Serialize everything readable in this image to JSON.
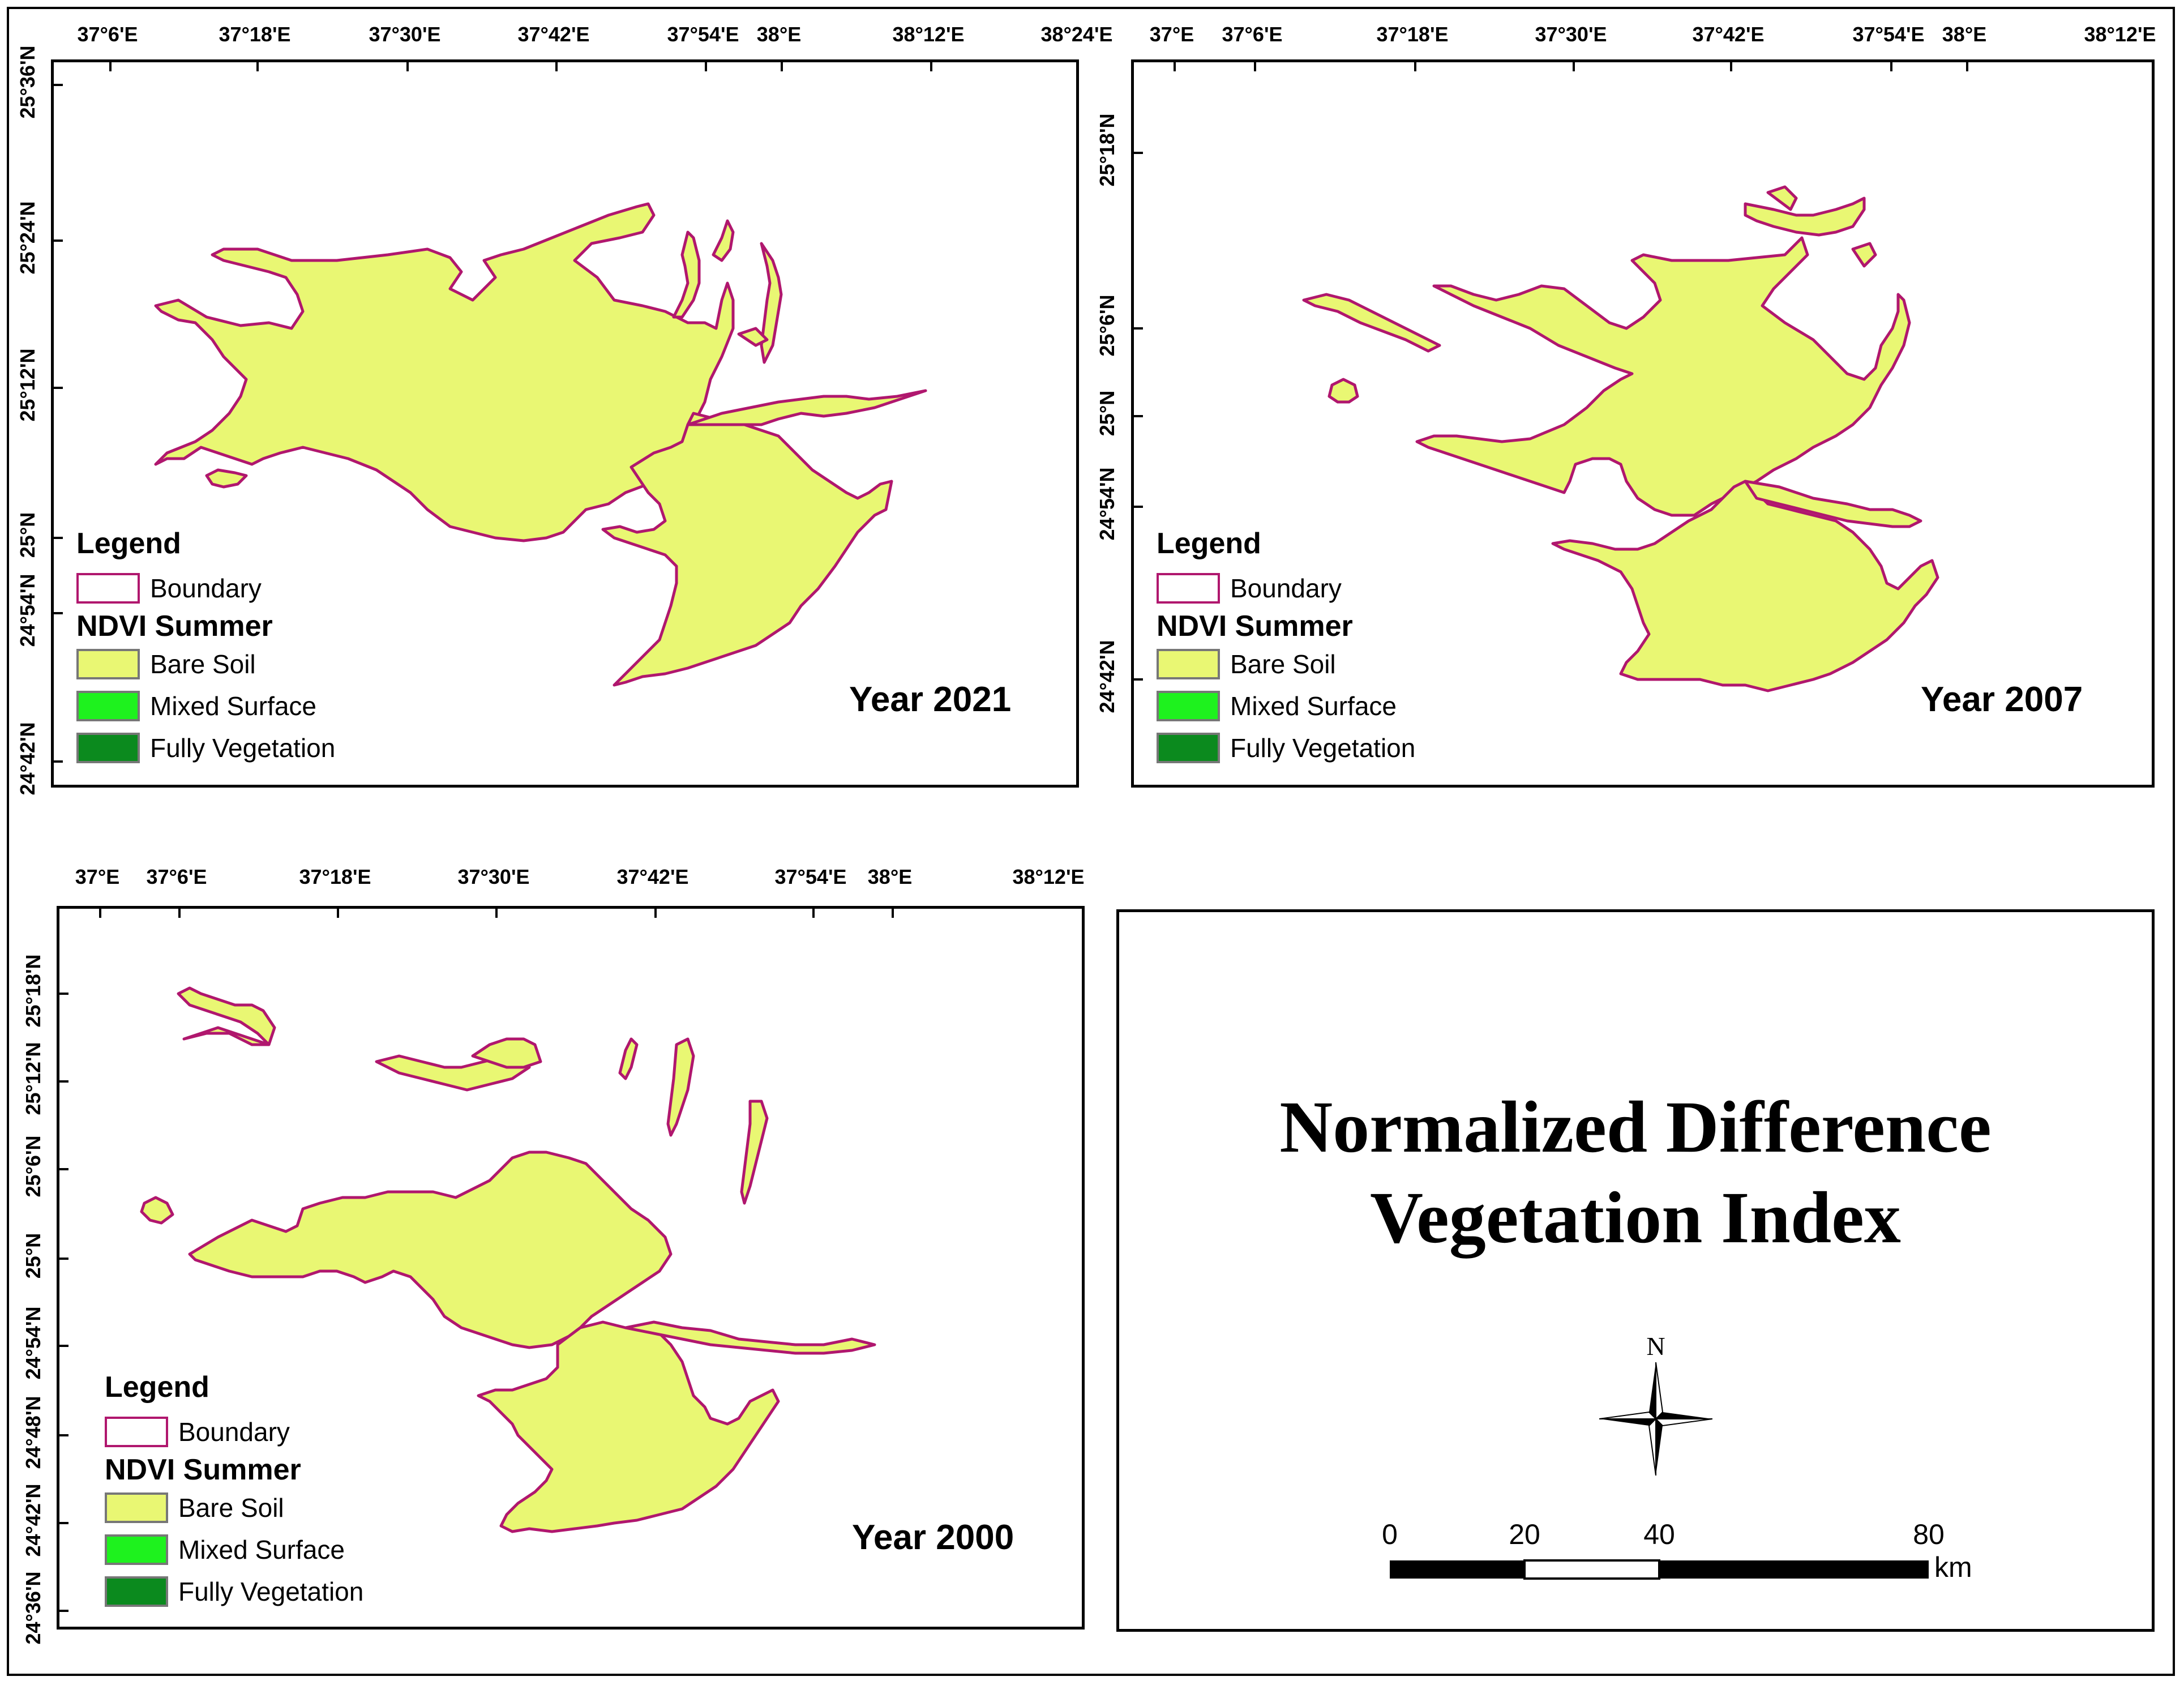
{
  "panels": [
    {
      "year_label": "Year 2021",
      "top_ticks": [
        "37°6'E",
        "37°18'E",
        "37°30'E",
        "37°42'E",
        "37°54'E",
        "38°E",
        "38°12'E",
        "38°24'E"
      ],
      "left_ticks": [
        "25°36'N",
        "25°24'N",
        "25°12'N",
        "25°N",
        "24°54'N",
        "24°42'N"
      ]
    },
    {
      "year_label": "Year 2007",
      "top_ticks": [
        "37°E",
        "37°6'E",
        "37°18'E",
        "37°30'E",
        "37°42'E",
        "37°54'E",
        "38°E",
        "38°12'E"
      ],
      "left_ticks": [
        "25°18'N",
        "25°6'N",
        "25°N",
        "24°54'N",
        "24°42'N"
      ]
    },
    {
      "year_label": "Year 2000",
      "top_ticks": [
        "37°E",
        "37°6'E",
        "37°18'E",
        "37°30'E",
        "37°42'E",
        "37°54'E",
        "38°E",
        "38°12'E"
      ],
      "left_ticks": [
        "25°18'N",
        "25°12'N",
        "25°6'N",
        "25°N",
        "24°54'N",
        "24°48'N",
        "24°42'N",
        "24°36'N"
      ]
    }
  ],
  "legend": {
    "title": "Legend",
    "boundary_label": "Boundary",
    "subtitle": "NDVI Summer",
    "classes": [
      {
        "label": "Bare Soil",
        "color": "#e9f773"
      },
      {
        "label": "Mixed Surface",
        "color": "#1ef21e"
      },
      {
        "label": "Fully Vegetation",
        "color": "#0b8a1e"
      }
    ],
    "boundary_color": "#b0176e"
  },
  "title": {
    "line1": "Normalized Difference",
    "line2": "Vegetation Index"
  },
  "north_arrow": {
    "label": "N"
  },
  "scale_bar": {
    "labels": [
      "0",
      "20",
      "40",
      "80"
    ],
    "unit": "km"
  }
}
